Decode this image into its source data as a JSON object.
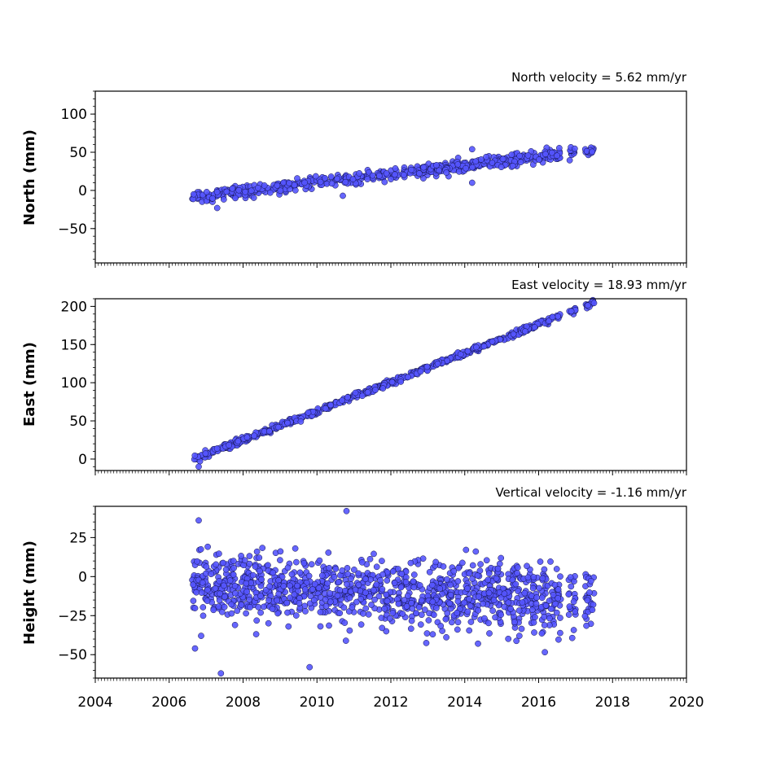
{
  "chart_data": [
    {
      "type": "scatter",
      "panel": "north",
      "title": "North velocity = 5.62 mm/yr",
      "ylabel": "North (mm)",
      "xlim": [
        2004,
        2020
      ],
      "ylim": [
        -95,
        130
      ],
      "yticks": [
        100,
        50,
        0,
        -50
      ],
      "ytick_labels": [
        "100",
        "50",
        "0",
        "−50"
      ],
      "trend": {
        "slope": 5.62,
        "value_at_2010": 10
      },
      "noise": 4,
      "outliers": [
        [
          2007.3,
          -23
        ],
        [
          2010.7,
          -7
        ],
        [
          2014.2,
          10
        ],
        [
          2014.2,
          54
        ]
      ],
      "points_per_year": 55,
      "spans": [
        [
          2006.62,
          2016.6
        ],
        [
          2016.8,
          2017.0
        ],
        [
          2017.25,
          2017.5
        ]
      ],
      "grid": false
    },
    {
      "type": "scatter",
      "panel": "east",
      "title": "East velocity = 18.93 mm/yr",
      "ylabel": "East (mm)",
      "xlim": [
        2004,
        2020
      ],
      "ylim": [
        -15,
        210
      ],
      "yticks": [
        200,
        150,
        100,
        50,
        0
      ],
      "ytick_labels": [
        "200",
        "150",
        "100",
        "50",
        "0"
      ],
      "trend": {
        "slope": 18.93,
        "value_at_2010": 63
      },
      "noise": 2,
      "outliers": [
        [
          2006.8,
          -10
        ]
      ],
      "points_per_year": 55,
      "spans": [
        [
          2006.62,
          2016.6
        ],
        [
          2016.8,
          2017.0
        ],
        [
          2017.25,
          2017.5
        ]
      ],
      "grid": false
    },
    {
      "type": "scatter",
      "panel": "height",
      "title": "Vertical velocity = -1.16 mm/yr",
      "ylabel": "Height (mm)",
      "xlim": [
        2004,
        2020
      ],
      "ylim": [
        -65,
        45
      ],
      "yticks": [
        25,
        0,
        -25,
        -50
      ],
      "ytick_labels": [
        "25",
        "0",
        "−25",
        "−50"
      ],
      "trend": {
        "slope": -1.16,
        "value_at_2010": -8
      },
      "noise": 11,
      "outliers": [
        [
          2006.8,
          36
        ],
        [
          2010.8,
          42
        ],
        [
          2009.8,
          -58
        ],
        [
          2007.4,
          -62
        ],
        [
          2006.7,
          -46
        ]
      ],
      "points_per_year": 110,
      "spans": [
        [
          2006.62,
          2016.6
        ],
        [
          2016.8,
          2017.0
        ],
        [
          2017.25,
          2017.5
        ]
      ],
      "grid": false
    }
  ],
  "x_axis": {
    "ticks": [
      2004,
      2006,
      2008,
      2010,
      2012,
      2014,
      2016,
      2018,
      2020
    ],
    "tick_labels": [
      "2004",
      "2006",
      "2008",
      "2010",
      "2012",
      "2014",
      "2016",
      "2018",
      "2020"
    ]
  },
  "colors": {
    "marker_fill": "#5555ff",
    "marker_edge": "#111144",
    "axes": "#000000"
  }
}
